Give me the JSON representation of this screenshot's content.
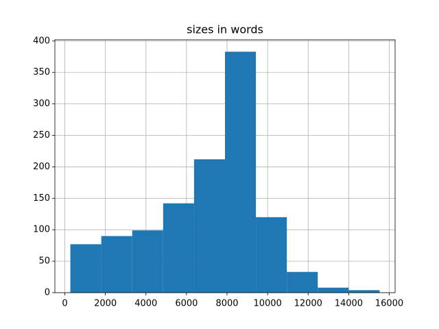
{
  "chart_data": {
    "type": "histogram",
    "title": "sizes in words",
    "bins": [
      271,
      1796,
      3322,
      4847,
      6373,
      7898,
      9423,
      10949,
      12474,
      14000,
      15525
    ],
    "values": [
      77,
      90,
      99,
      142,
      212,
      383,
      120,
      33,
      8,
      4
    ],
    "color": "#1f77b4",
    "xlim": [
      -492,
      16288
    ],
    "xticks": [
      0,
      2000,
      4000,
      6000,
      8000,
      10000,
      12000,
      14000,
      16000
    ],
    "ylim": [
      0,
      402
    ],
    "yticks": [
      0,
      50,
      100,
      150,
      200,
      250,
      300,
      350,
      400
    ],
    "grid": true
  }
}
